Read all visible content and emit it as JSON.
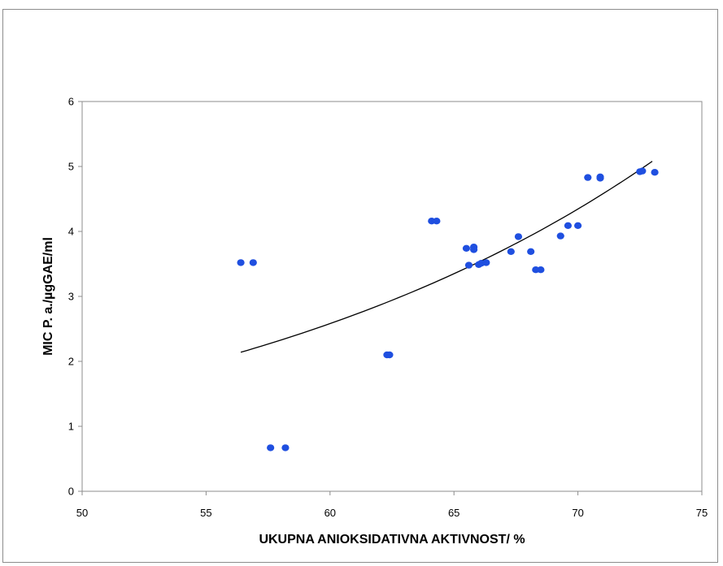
{
  "chart_data": {
    "type": "scatter",
    "title": "",
    "xlabel": "UKUPNA ANIOKSIDATIVNA AKTIVNOST/ %",
    "ylabel": "MIC P. a./µgGAE/ml",
    "xlim": [
      50,
      75
    ],
    "ylim": [
      0,
      6
    ],
    "xticks": [
      50,
      55,
      60,
      65,
      70,
      75
    ],
    "yticks": [
      0,
      1,
      2,
      3,
      4,
      5,
      6
    ],
    "grid": false,
    "legend": "none",
    "point_color": "#1f4fe0",
    "series": [
      {
        "points": [
          [
            56.4,
            3.52
          ],
          [
            56.9,
            3.52
          ],
          [
            57.6,
            0.67
          ],
          [
            58.2,
            0.67
          ],
          [
            62.3,
            2.1
          ],
          [
            62.4,
            2.1
          ],
          [
            64.1,
            4.16
          ],
          [
            64.3,
            4.16
          ],
          [
            65.5,
            3.74
          ],
          [
            65.8,
            3.76
          ],
          [
            65.8,
            3.72
          ],
          [
            65.6,
            3.48
          ],
          [
            66.0,
            3.49
          ],
          [
            66.1,
            3.51
          ],
          [
            66.3,
            3.52
          ],
          [
            67.3,
            3.69
          ],
          [
            67.6,
            3.92
          ],
          [
            68.1,
            3.69
          ],
          [
            68.3,
            3.41
          ],
          [
            68.5,
            3.41
          ],
          [
            69.3,
            3.93
          ],
          [
            69.6,
            4.09
          ],
          [
            70.0,
            4.09
          ],
          [
            70.4,
            4.83
          ],
          [
            70.9,
            4.84
          ],
          [
            70.9,
            4.82
          ],
          [
            72.5,
            4.92
          ],
          [
            72.6,
            4.93
          ],
          [
            73.1,
            4.91
          ]
        ]
      }
    ],
    "trendline": {
      "type": "exponential",
      "x": [
        56.4,
        73.0
      ],
      "y": [
        2.14,
        5.08
      ],
      "color": "#000000"
    }
  }
}
